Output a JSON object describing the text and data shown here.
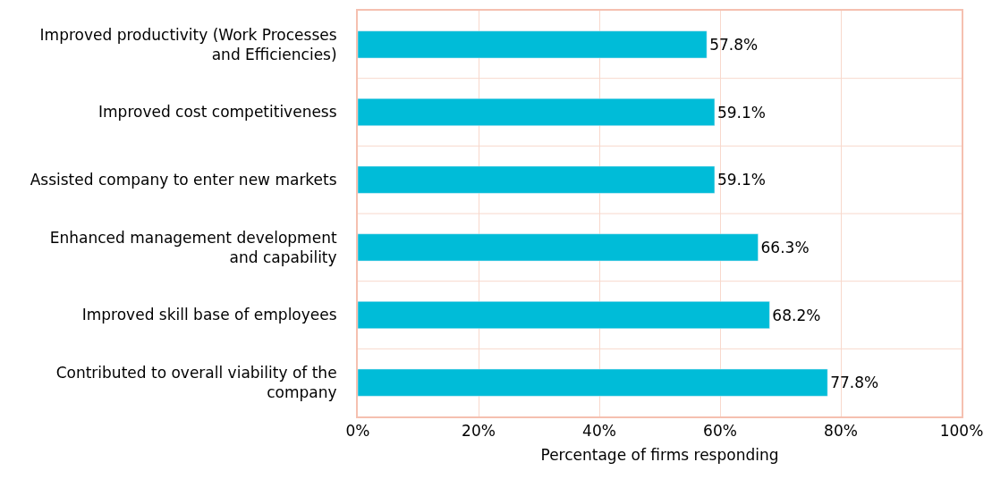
{
  "chart_data": {
    "type": "bar",
    "orientation": "horizontal",
    "categories": [
      "Improved productivity (Work Processes\nand Efficiencies)",
      "Improved cost competitiveness",
      "Assisted company to enter new markets",
      "Enhanced management development\nand capability",
      "Improved skill base of employees",
      "Contributed to overall viability of the\ncompany"
    ],
    "values": [
      57.8,
      59.1,
      59.1,
      66.3,
      68.2,
      77.8
    ],
    "value_labels": [
      "57.8%",
      "59.1%",
      "59.1%",
      "66.3%",
      "68.2%",
      "77.8%"
    ],
    "color": "#00bcd8",
    "xlabel": "Percentage of firms responding",
    "xlim": [
      0,
      100
    ],
    "xticks": [
      {
        "value": 0,
        "label": "0%"
      },
      {
        "value": 20,
        "label": "20%"
      },
      {
        "value": 40,
        "label": "40%"
      },
      {
        "value": 60,
        "label": "60%"
      },
      {
        "value": 80,
        "label": "80%"
      },
      {
        "value": 100,
        "label": "100%"
      }
    ],
    "grid": true,
    "legend": false
  }
}
